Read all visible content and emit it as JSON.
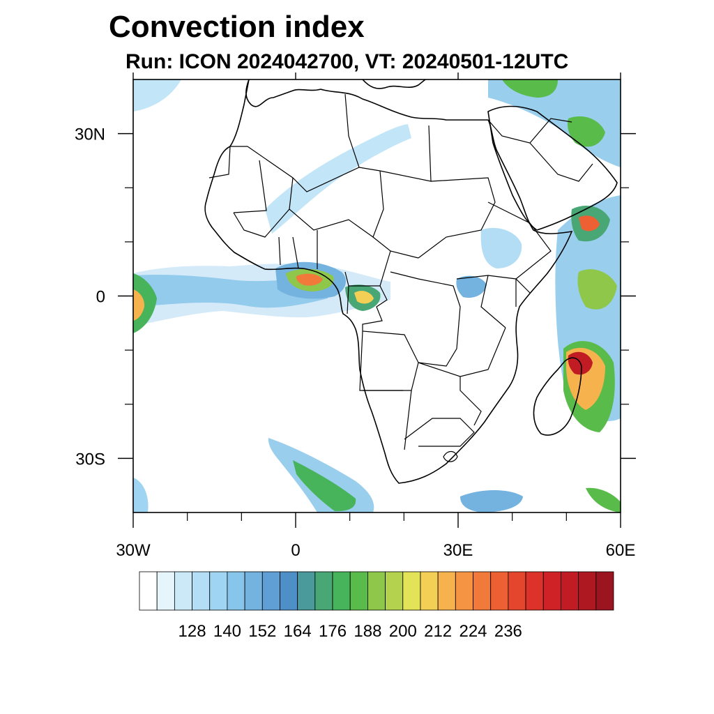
{
  "title": "Convection index",
  "subtitle": "Run: ICON 2024042700,  VT: 20240501-12UTC",
  "map": {
    "lon_range": [
      -30,
      60
    ],
    "lat_range": [
      -40,
      40
    ],
    "lon_ticks": [
      {
        "value": -30,
        "label": "30W"
      },
      {
        "value": 0,
        "label": "0"
      },
      {
        "value": 30,
        "label": "30E"
      },
      {
        "value": 60,
        "label": "60E"
      }
    ],
    "lat_ticks": [
      {
        "value": 30,
        "label": "30N"
      },
      {
        "value": 0,
        "label": "0"
      },
      {
        "value": -30,
        "label": "30S"
      }
    ],
    "minor_lon_ticks": [
      -20,
      -10,
      10,
      20,
      40,
      50
    ],
    "minor_lat_ticks": [
      20,
      10,
      -10,
      -20
    ]
  },
  "colorbar": {
    "labels": [
      "128",
      "140",
      "152",
      "164",
      "176",
      "188",
      "200",
      "212",
      "224",
      "236"
    ],
    "colors": [
      "#ffffff",
      "#e6f4fc",
      "#cce9f8",
      "#b3def5",
      "#9fd5f3",
      "#87c5ea",
      "#74b2e0",
      "#5f9fd5",
      "#4f8fc8",
      "#4a9a9c",
      "#48a774",
      "#47b35a",
      "#59bb4a",
      "#8ec749",
      "#b5d24f",
      "#e2e356",
      "#f4cf55",
      "#f6b24c",
      "#f59443",
      "#f17a3a",
      "#ec6033",
      "#e4452d",
      "#dc322a",
      "#cf2226",
      "#c11b24",
      "#ad1821",
      "#9a151f"
    ]
  },
  "convection_areas": [
    {
      "region": "atlantic-equatorial-band",
      "level": "medium"
    },
    {
      "region": "gulf-of-guinea",
      "level": "high"
    },
    {
      "region": "madagascar-east",
      "level": "very-high"
    },
    {
      "region": "south-atlantic-front",
      "level": "medium"
    }
  ]
}
